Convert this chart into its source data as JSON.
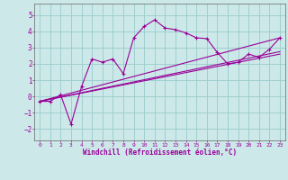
{
  "xlabel": "Windchill (Refroidissement éolien,°C)",
  "bg_color": "#cce8e8",
  "grid_color": "#99cccc",
  "line_color": "#990099",
  "xlim": [
    -0.5,
    23.5
  ],
  "ylim": [
    -2.7,
    5.7
  ],
  "xticks": [
    0,
    1,
    2,
    3,
    4,
    5,
    6,
    7,
    8,
    9,
    10,
    11,
    12,
    13,
    14,
    15,
    16,
    17,
    18,
    19,
    20,
    21,
    22,
    23
  ],
  "yticks": [
    -2,
    -1,
    0,
    1,
    2,
    3,
    4,
    5
  ],
  "series": {
    "line1_x": [
      0,
      1,
      2,
      3,
      4,
      5,
      6,
      7,
      8,
      9,
      10,
      11,
      12,
      13,
      14,
      15,
      16,
      17,
      18,
      19,
      20,
      21,
      22,
      23
    ],
    "line1_y": [
      -0.3,
      -0.3,
      0.1,
      -1.7,
      0.6,
      2.3,
      2.1,
      2.3,
      1.4,
      3.6,
      4.3,
      4.7,
      4.2,
      4.1,
      3.9,
      3.6,
      3.55,
      2.7,
      2.0,
      2.1,
      2.6,
      2.4,
      2.9,
      3.6
    ],
    "line2_x": [
      0,
      23
    ],
    "line2_y": [
      -0.3,
      3.6
    ],
    "line3_x": [
      0,
      23
    ],
    "line3_y": [
      -0.3,
      2.6
    ],
    "line4_x": [
      0,
      23
    ],
    "line4_y": [
      -0.3,
      2.75
    ]
  }
}
